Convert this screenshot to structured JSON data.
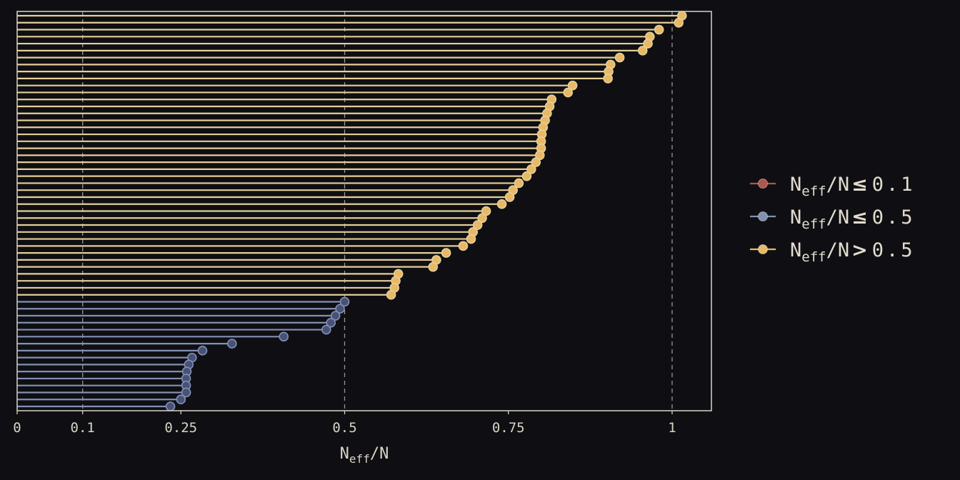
{
  "chart_data": {
    "type": "lollipop",
    "xlabel": {
      "base": "N",
      "sub": "eff",
      "rest": "/N"
    },
    "xlim": [
      0,
      1.06
    ],
    "x_ticks": [
      {
        "value": 0,
        "label": "0"
      },
      {
        "value": 0.1,
        "label": "0.1"
      },
      {
        "value": 0.25,
        "label": "0.25"
      },
      {
        "value": 0.5,
        "label": "0.5"
      },
      {
        "value": 0.75,
        "label": "0.75"
      },
      {
        "value": 1,
        "label": "1"
      }
    ],
    "reference_lines": [
      0.1,
      0.5,
      1
    ],
    "grid": false,
    "legend_position": "right",
    "legend": [
      {
        "key": "low",
        "base": "N",
        "sub": "eff",
        "rest": "/N",
        "op": "≤",
        "val": "0.1",
        "color": "#b0564d"
      },
      {
        "key": "mid",
        "base": "N",
        "sub": "eff",
        "rest": "/N",
        "op": "≤",
        "val": "0.5",
        "color": "#8290b3"
      },
      {
        "key": "high",
        "base": "N",
        "sub": "eff",
        "rest": "/N",
        "op": ">",
        "val": "0.5",
        "color": "#e8b866"
      }
    ],
    "series_colors": {
      "mid": {
        "line": "#8290b3",
        "fill": "#475276"
      },
      "high": {
        "line": "#e5cf98",
        "fill": "#e8b866"
      }
    },
    "values": [
      1.015,
      1.01,
      0.98,
      0.966,
      0.963,
      0.955,
      0.92,
      0.906,
      0.903,
      0.902,
      0.848,
      0.841,
      0.816,
      0.813,
      0.809,
      0.806,
      0.803,
      0.801,
      0.8,
      0.8,
      0.798,
      0.792,
      0.785,
      0.778,
      0.766,
      0.757,
      0.752,
      0.74,
      0.716,
      0.71,
      0.703,
      0.696,
      0.693,
      0.681,
      0.655,
      0.64,
      0.635,
      0.582,
      0.578,
      0.576,
      0.571,
      0.5,
      0.493,
      0.486,
      0.479,
      0.472,
      0.407,
      0.328,
      0.283,
      0.267,
      0.262,
      0.259,
      0.258,
      0.258,
      0.258,
      0.25,
      0.234
    ]
  },
  "colors": {
    "background": "#0f0f13",
    "frame": "#d9d3c7",
    "reference_line": "#9a968e",
    "text": "#d9d3c7"
  }
}
